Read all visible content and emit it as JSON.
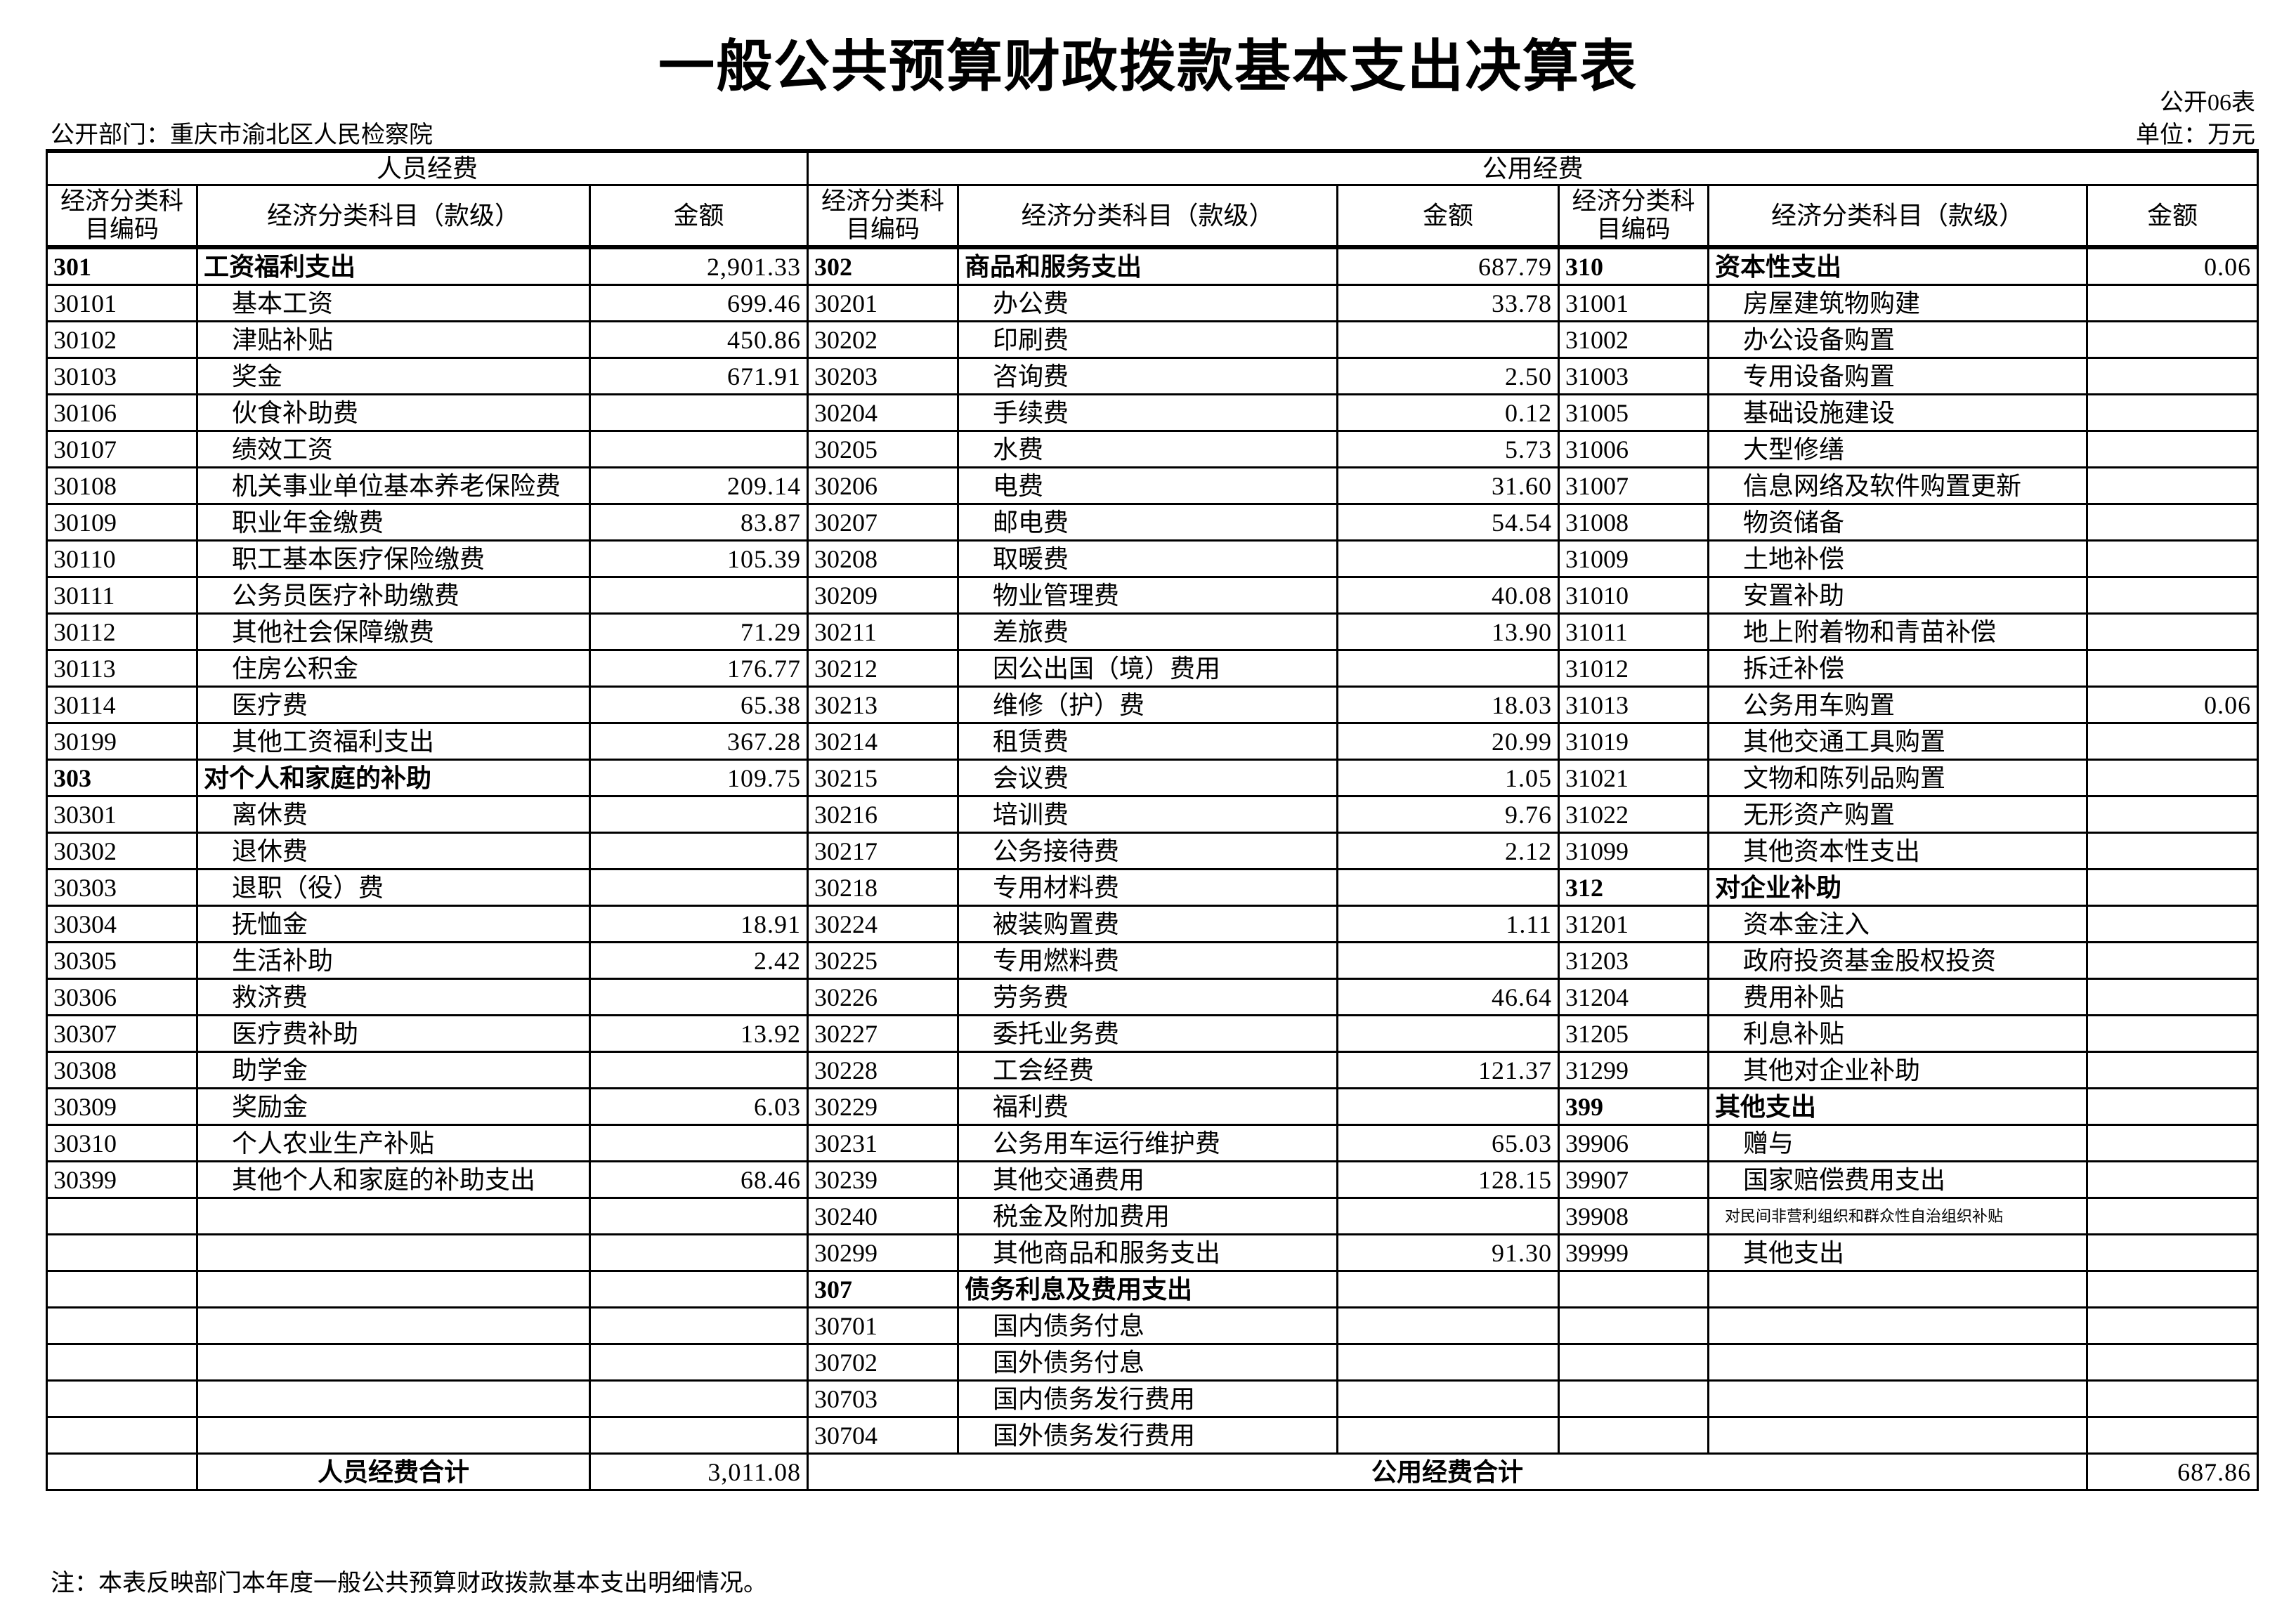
{
  "title": "一般公共预算财政拨款基本支出决算表",
  "form_no": "公开06表",
  "department": "公开部门：重庆市渝北区人民检察院",
  "unit": "单位：万元",
  "headers": {
    "personnel": "人员经费",
    "public": "公用经费",
    "code": "经济分类科目编码",
    "name": "经济分类科目（款级）",
    "amount": "金额"
  },
  "personnel_rows": [
    {
      "code": "301",
      "name": "工资福利支出",
      "amount": "2,901.33",
      "bold": true
    },
    {
      "code": "30101",
      "name": "基本工资",
      "amount": "699.46"
    },
    {
      "code": "30102",
      "name": "津贴补贴",
      "amount": "450.86"
    },
    {
      "code": "30103",
      "name": "奖金",
      "amount": "671.91"
    },
    {
      "code": "30106",
      "name": "伙食补助费",
      "amount": ""
    },
    {
      "code": "30107",
      "name": "绩效工资",
      "amount": ""
    },
    {
      "code": "30108",
      "name": "机关事业单位基本养老保险费",
      "amount": "209.14"
    },
    {
      "code": "30109",
      "name": "职业年金缴费",
      "amount": "83.87"
    },
    {
      "code": "30110",
      "name": "职工基本医疗保险缴费",
      "amount": "105.39"
    },
    {
      "code": "30111",
      "name": "公务员医疗补助缴费",
      "amount": ""
    },
    {
      "code": "30112",
      "name": "其他社会保障缴费",
      "amount": "71.29"
    },
    {
      "code": "30113",
      "name": "住房公积金",
      "amount": "176.77"
    },
    {
      "code": "30114",
      "name": "医疗费",
      "amount": "65.38"
    },
    {
      "code": "30199",
      "name": "其他工资福利支出",
      "amount": "367.28"
    },
    {
      "code": "303",
      "name": "对个人和家庭的补助",
      "amount": "109.75",
      "bold": true
    },
    {
      "code": "30301",
      "name": "离休费",
      "amount": ""
    },
    {
      "code": "30302",
      "name": "退休费",
      "amount": ""
    },
    {
      "code": "30303",
      "name": "退职（役）费",
      "amount": ""
    },
    {
      "code": "30304",
      "name": "抚恤金",
      "amount": "18.91"
    },
    {
      "code": "30305",
      "name": "生活补助",
      "amount": "2.42"
    },
    {
      "code": "30306",
      "name": "救济费",
      "amount": ""
    },
    {
      "code": "30307",
      "name": "医疗费补助",
      "amount": "13.92"
    },
    {
      "code": "30308",
      "name": "助学金",
      "amount": ""
    },
    {
      "code": "30309",
      "name": "奖励金",
      "amount": "6.03"
    },
    {
      "code": "30310",
      "name": "个人农业生产补贴",
      "amount": ""
    },
    {
      "code": "30399",
      "name": "其他个人和家庭的补助支出",
      "amount": "68.46"
    }
  ],
  "public_rows_a": [
    {
      "code": "302",
      "name": "商品和服务支出",
      "amount": "687.79",
      "bold": true
    },
    {
      "code": "30201",
      "name": "办公费",
      "amount": "33.78"
    },
    {
      "code": "30202",
      "name": "印刷费",
      "amount": ""
    },
    {
      "code": "30203",
      "name": "咨询费",
      "amount": "2.50"
    },
    {
      "code": "30204",
      "name": "手续费",
      "amount": "0.12"
    },
    {
      "code": "30205",
      "name": "水费",
      "amount": "5.73"
    },
    {
      "code": "30206",
      "name": "电费",
      "amount": "31.60"
    },
    {
      "code": "30207",
      "name": "邮电费",
      "amount": "54.54"
    },
    {
      "code": "30208",
      "name": "取暖费",
      "amount": ""
    },
    {
      "code": "30209",
      "name": "物业管理费",
      "amount": "40.08"
    },
    {
      "code": "30211",
      "name": "差旅费",
      "amount": "13.90"
    },
    {
      "code": "30212",
      "name": "因公出国（境）费用",
      "amount": ""
    },
    {
      "code": "30213",
      "name": "维修（护）费",
      "amount": "18.03"
    },
    {
      "code": "30214",
      "name": "租赁费",
      "amount": "20.99"
    },
    {
      "code": "30215",
      "name": "会议费",
      "amount": "1.05"
    },
    {
      "code": "30216",
      "name": "培训费",
      "amount": "9.76"
    },
    {
      "code": "30217",
      "name": "公务接待费",
      "amount": "2.12"
    },
    {
      "code": "30218",
      "name": "专用材料费",
      "amount": ""
    },
    {
      "code": "30224",
      "name": "被装购置费",
      "amount": "1.11"
    },
    {
      "code": "30225",
      "name": "专用燃料费",
      "amount": ""
    },
    {
      "code": "30226",
      "name": "劳务费",
      "amount": "46.64"
    },
    {
      "code": "30227",
      "name": "委托业务费",
      "amount": ""
    },
    {
      "code": "30228",
      "name": "工会经费",
      "amount": "121.37"
    },
    {
      "code": "30229",
      "name": "福利费",
      "amount": ""
    },
    {
      "code": "30231",
      "name": "公务用车运行维护费",
      "amount": "65.03"
    },
    {
      "code": "30239",
      "name": "其他交通费用",
      "amount": "128.15"
    },
    {
      "code": "30240",
      "name": "税金及附加费用",
      "amount": ""
    },
    {
      "code": "30299",
      "name": "其他商品和服务支出",
      "amount": "91.30"
    },
    {
      "code": "307",
      "name": "债务利息及费用支出",
      "amount": "",
      "bold": true
    },
    {
      "code": "30701",
      "name": "国内债务付息",
      "amount": ""
    },
    {
      "code": "30702",
      "name": "国外债务付息",
      "amount": ""
    },
    {
      "code": "30703",
      "name": "国内债务发行费用",
      "amount": ""
    },
    {
      "code": "30704",
      "name": "国外债务发行费用",
      "amount": ""
    }
  ],
  "public_rows_b": [
    {
      "code": "310",
      "name": "资本性支出",
      "amount": "0.06",
      "bold": true
    },
    {
      "code": "31001",
      "name": "房屋建筑物购建",
      "amount": ""
    },
    {
      "code": "31002",
      "name": "办公设备购置",
      "amount": ""
    },
    {
      "code": "31003",
      "name": "专用设备购置",
      "amount": ""
    },
    {
      "code": "31005",
      "name": "基础设施建设",
      "amount": ""
    },
    {
      "code": "31006",
      "name": "大型修缮",
      "amount": ""
    },
    {
      "code": "31007",
      "name": "信息网络及软件购置更新",
      "amount": ""
    },
    {
      "code": "31008",
      "name": "物资储备",
      "amount": ""
    },
    {
      "code": "31009",
      "name": "土地补偿",
      "amount": ""
    },
    {
      "code": "31010",
      "name": "安置补助",
      "amount": ""
    },
    {
      "code": "31011",
      "name": "地上附着物和青苗补偿",
      "amount": ""
    },
    {
      "code": "31012",
      "name": "拆迁补偿",
      "amount": ""
    },
    {
      "code": "31013",
      "name": "公务用车购置",
      "amount": "0.06"
    },
    {
      "code": "31019",
      "name": "其他交通工具购置",
      "amount": ""
    },
    {
      "code": "31021",
      "name": "文物和陈列品购置",
      "amount": ""
    },
    {
      "code": "31022",
      "name": "无形资产购置",
      "amount": ""
    },
    {
      "code": "31099",
      "name": "其他资本性支出",
      "amount": ""
    },
    {
      "code": "312",
      "name": "对企业补助",
      "amount": "",
      "bold": true
    },
    {
      "code": "31201",
      "name": "资本金注入",
      "amount": ""
    },
    {
      "code": "31203",
      "name": "政府投资基金股权投资",
      "amount": ""
    },
    {
      "code": "31204",
      "name": "费用补贴",
      "amount": ""
    },
    {
      "code": "31205",
      "name": "利息补贴",
      "amount": ""
    },
    {
      "code": "31299",
      "name": "其他对企业补助",
      "amount": ""
    },
    {
      "code": "399",
      "name": "其他支出",
      "amount": "",
      "bold": true
    },
    {
      "code": "39906",
      "name": "赠与",
      "amount": ""
    },
    {
      "code": "39907",
      "name": "国家赔偿费用支出",
      "amount": ""
    },
    {
      "code": "39908",
      "name": "对民间非营利组织和群众性自治组织补贴",
      "amount": "",
      "small": true
    },
    {
      "code": "39999",
      "name": "其他支出",
      "amount": ""
    }
  ],
  "totals": {
    "personnel_label": "人员经费合计",
    "personnel_amount": "3,011.08",
    "public_label": "公用经费合计",
    "public_amount": "687.86"
  },
  "note": "注：本表反映部门本年度一般公共预算财政拨款基本支出明细情况。"
}
